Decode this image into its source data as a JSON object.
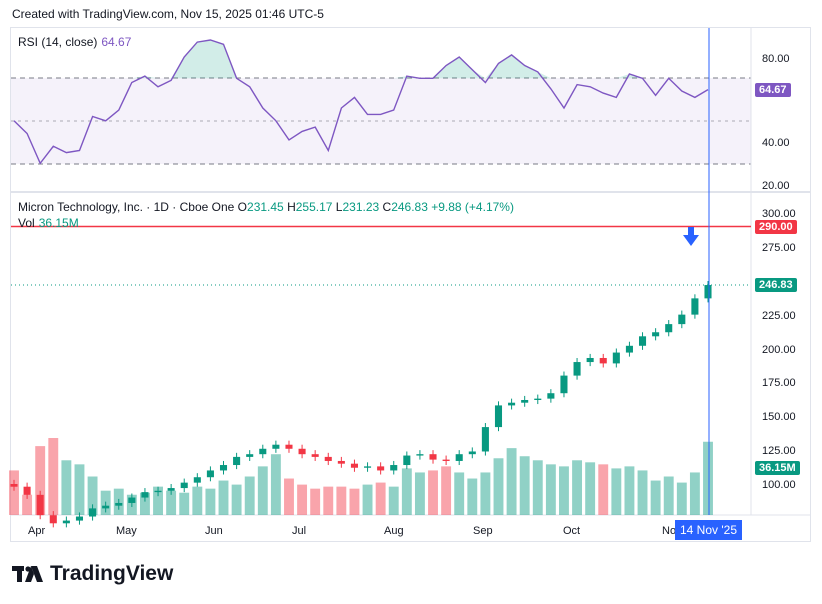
{
  "header": {
    "created_text": "Created with TradingView.com, Nov 15, 2025 01:46 UTC-5"
  },
  "rsi": {
    "label": "RSI (14, close)",
    "value": "64.67",
    "ticks": [
      "80.00",
      "40.00",
      "20.00"
    ],
    "current_badge": "64.67"
  },
  "price": {
    "title": "Micron Technology, Inc. · 1D · Cboe One",
    "o_label": "O",
    "o": "231.45",
    "h_label": "H",
    "h": "255.17",
    "l_label": "L",
    "l": "231.23",
    "c_label": "C",
    "c": "246.83",
    "change": "+9.88 (+4.17%)",
    "vol_label": "Vol",
    "vol": "36.15M",
    "ticks": [
      "300.00",
      "275.00",
      "225.00",
      "200.00",
      "175.00",
      "150.00",
      "125.00",
      "100.00"
    ],
    "alert_badge": "290.00",
    "price_badge": "246.83",
    "vol_badge": "36.15M"
  },
  "xaxis": {
    "labels": [
      "Apr",
      "May",
      "Jun",
      "Jul",
      "Aug",
      "Sep",
      "Oct",
      "No"
    ],
    "cursor_label": "14 Nov '25"
  },
  "logo": {
    "text": "TradingView"
  },
  "colors": {
    "up": "#089981",
    "down": "#f23645",
    "rsi": "#7e57c2",
    "alert": "#f23645",
    "cursor": "#2962ff"
  },
  "chart_data": [
    {
      "type": "line",
      "name": "RSI (14, close)",
      "ylim": [
        20,
        90
      ],
      "bands": [
        30,
        50,
        70
      ],
      "x": [
        "Mar 28",
        "Apr 1",
        "Apr 4",
        "Apr 8",
        "Apr 11",
        "Apr 16",
        "Apr 21",
        "Apr 25",
        "Apr 30",
        "May 5",
        "May 9",
        "May 14",
        "May 19",
        "May 23",
        "May 29",
        "Jun 3",
        "Jun 6",
        "Jun 11",
        "Jun 16",
        "Jun 20",
        "Jun 25",
        "Jun 30",
        "Jul 3",
        "Jul 9",
        "Jul 15",
        "Jul 18",
        "Jul 24",
        "Jul 29",
        "Aug 1",
        "Aug 6",
        "Aug 11",
        "Aug 14",
        "Aug 19",
        "Aug 22",
        "Aug 27",
        "Sep 2",
        "Sep 5",
        "Sep 10",
        "Sep 15",
        "Sep 18",
        "Sep 23",
        "Sep 26",
        "Oct 1",
        "Oct 6",
        "Oct 9",
        "Oct 14",
        "Oct 17",
        "Oct 22",
        "Oct 27",
        "Oct 30",
        "Nov 4",
        "Nov 7",
        "Nov 11",
        "Nov 14"
      ],
      "values": [
        50,
        44,
        30,
        38,
        35,
        36,
        52,
        50,
        55,
        68,
        71,
        66,
        69,
        80,
        87,
        88,
        86,
        70,
        66,
        56,
        50,
        41,
        45,
        47,
        36,
        56,
        61,
        53,
        53,
        55,
        71,
        70,
        70,
        76,
        80,
        74,
        68,
        77,
        81,
        76,
        73,
        65,
        56,
        67,
        66,
        63,
        61,
        72,
        70,
        62,
        70,
        64,
        61,
        64.67
      ]
    },
    {
      "type": "candlestick",
      "name": "Micron Technology, Inc. · 1D · Cboe One",
      "ylim": [
        80,
        305
      ],
      "alert_level": 290.0,
      "last_close": 246.83,
      "x": [
        "Mar 28",
        "Apr 1",
        "Apr 4",
        "Apr 8",
        "Apr 11",
        "Apr 16",
        "Apr 21",
        "Apr 25",
        "Apr 30",
        "May 5",
        "May 9",
        "May 14",
        "May 19",
        "May 23",
        "May 29",
        "Jun 3",
        "Jun 6",
        "Jun 11",
        "Jun 16",
        "Jun 20",
        "Jun 25",
        "Jun 30",
        "Jul 3",
        "Jul 9",
        "Jul 15",
        "Jul 18",
        "Jul 24",
        "Jul 29",
        "Aug 1",
        "Aug 6",
        "Aug 11",
        "Aug 14",
        "Aug 19",
        "Aug 22",
        "Aug 27",
        "Sep 2",
        "Sep 5",
        "Sep 10",
        "Sep 15",
        "Sep 18",
        "Sep 23",
        "Sep 26",
        "Oct 1",
        "Oct 6",
        "Oct 9",
        "Oct 14",
        "Oct 17",
        "Oct 22",
        "Oct 27",
        "Oct 30",
        "Nov 4",
        "Nov 7",
        "Nov 11",
        "Nov 14"
      ],
      "close": [
        98,
        92,
        77,
        71,
        73,
        76,
        82,
        84,
        86,
        90,
        94,
        95,
        97,
        101,
        105,
        110,
        114,
        120,
        122,
        126,
        129,
        126,
        122,
        120,
        117,
        115,
        112,
        113,
        110,
        114,
        121,
        122,
        118,
        117,
        122,
        124,
        142,
        158,
        160,
        162,
        163,
        167,
        180,
        190,
        193,
        189,
        197,
        202,
        209,
        212,
        218,
        225,
        237,
        246.83
      ],
      "volume_millions": [
        22,
        10,
        34,
        38,
        27,
        25,
        19,
        12,
        13,
        10,
        11,
        14,
        12,
        11,
        14,
        13,
        17,
        15,
        19,
        24,
        30,
        18,
        15,
        13,
        14,
        14,
        13,
        15,
        16,
        14,
        23,
        21,
        22,
        24,
        21,
        18,
        21,
        28,
        33,
        29,
        27,
        25,
        24,
        27,
        26,
        25,
        23,
        24,
        22,
        17,
        19,
        16,
        21,
        36.15
      ]
    }
  ]
}
